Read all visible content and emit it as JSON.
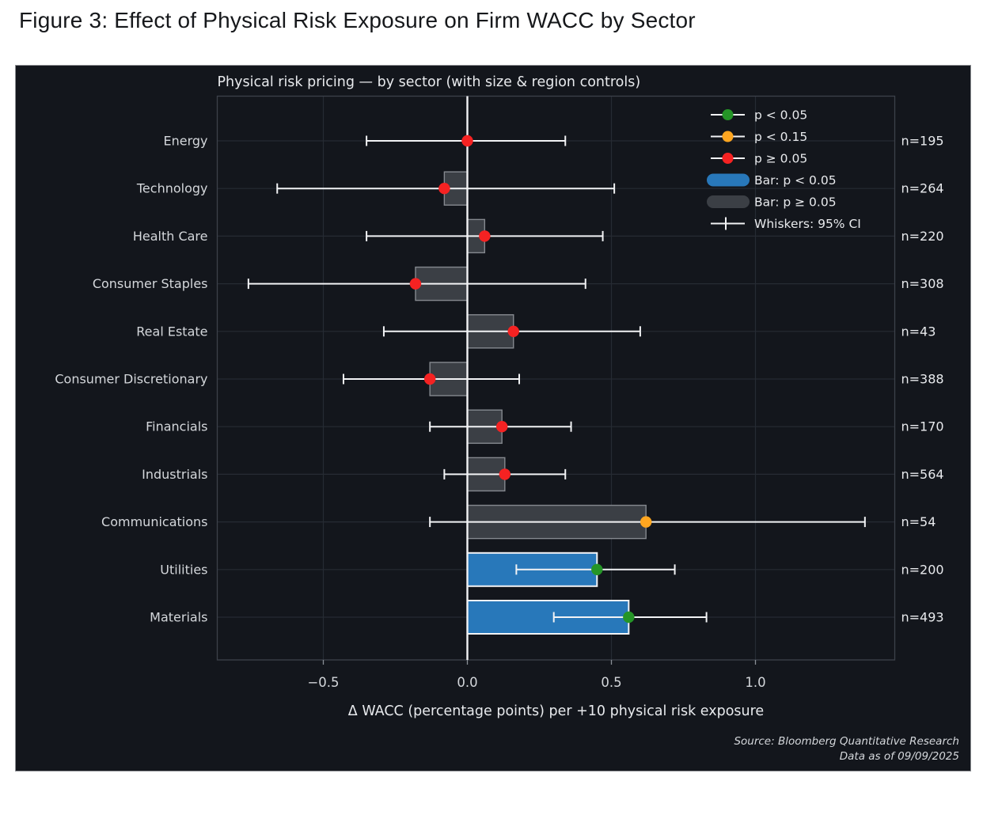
{
  "figure_title": "Figure 3: Effect of Physical Risk Exposure on Firm WACC by Sector",
  "colors": {
    "page_bg": "#ffffff",
    "panel_bg": "#13161c",
    "text_light": "#e8eaed",
    "label_gray": "#d4d7db",
    "grid": "#262b33",
    "spine": "#3c414a",
    "white_line": "#f2f3f5",
    "tick": "#8a8f96",
    "blue": "#2878ba",
    "gray_bar": "#3b3f45",
    "gray_bar_edge": "#85898f",
    "green": "#259527",
    "orange": "#ffa620",
    "red": "#f52222"
  },
  "chart_data": {
    "type": "bar",
    "orientation": "horizontal",
    "title": "Physical risk pricing — by sector (with size & region controls)",
    "xlabel": "Δ WACC (percentage points) per +10 physical risk exposure",
    "xlim": [
      -0.87,
      1.48
    ],
    "x_ticks": [
      -0.5,
      0.0,
      0.5,
      1.0
    ],
    "x_tick_labels": [
      "−0.5",
      "0.0",
      "0.5",
      "1.0"
    ],
    "grid": true,
    "zero_line": true,
    "sectors": [
      {
        "label": "Energy",
        "coef": 0.0,
        "ci": [
          -0.35,
          0.34
        ],
        "p_class": "p>=0.05",
        "n_label": "n=195"
      },
      {
        "label": "Technology",
        "coef": -0.08,
        "ci": [
          -0.66,
          0.51
        ],
        "p_class": "p>=0.05",
        "n_label": "n=264"
      },
      {
        "label": "Health Care",
        "coef": 0.06,
        "ci": [
          -0.35,
          0.47
        ],
        "p_class": "p>=0.05",
        "n_label": "n=220"
      },
      {
        "label": "Consumer Staples",
        "coef": -0.18,
        "ci": [
          -0.76,
          0.41
        ],
        "p_class": "p>=0.05",
        "n_label": "n=308"
      },
      {
        "label": "Real Estate",
        "coef": 0.16,
        "ci": [
          -0.29,
          0.6
        ],
        "p_class": "p>=0.05",
        "n_label": "n=43"
      },
      {
        "label": "Consumer Discretionary",
        "coef": -0.13,
        "ci": [
          -0.43,
          0.18
        ],
        "p_class": "p>=0.05",
        "n_label": "n=388"
      },
      {
        "label": "Financials",
        "coef": 0.12,
        "ci": [
          -0.13,
          0.36
        ],
        "p_class": "p>=0.05",
        "n_label": "n=170"
      },
      {
        "label": "Industrials",
        "coef": 0.13,
        "ci": [
          -0.08,
          0.34
        ],
        "p_class": "p>=0.05",
        "n_label": "n=564"
      },
      {
        "label": "Communications",
        "coef": 0.62,
        "ci": [
          -0.13,
          1.38
        ],
        "p_class": "p<0.15",
        "n_label": "n=54"
      },
      {
        "label": "Utilities",
        "coef": 0.45,
        "ci": [
          0.17,
          0.72
        ],
        "p_class": "p<0.05",
        "n_label": "n=200"
      },
      {
        "label": "Materials",
        "coef": 0.56,
        "ci": [
          0.3,
          0.83
        ],
        "p_class": "p<0.05",
        "n_label": "n=493"
      }
    ],
    "legend": {
      "position": "upper right",
      "entries": [
        {
          "marker": "dot",
          "color_key": "green",
          "label": "p < 0.05"
        },
        {
          "marker": "dot",
          "color_key": "orange",
          "label": "p < 0.15"
        },
        {
          "marker": "dot",
          "color_key": "red",
          "label": "p ≥ 0.05"
        },
        {
          "marker": "pill",
          "color_key": "blue",
          "label": "Bar: p < 0.05"
        },
        {
          "marker": "pill",
          "color_key": "gray_bar",
          "label": "Bar: p ≥ 0.05"
        },
        {
          "marker": "whisker",
          "color_key": "white_line",
          "label": "Whiskers: 95% CI"
        }
      ]
    },
    "source_lines": [
      "Source: Bloomberg Quantitative Research",
      "Data as of 09/09/2025"
    ]
  }
}
